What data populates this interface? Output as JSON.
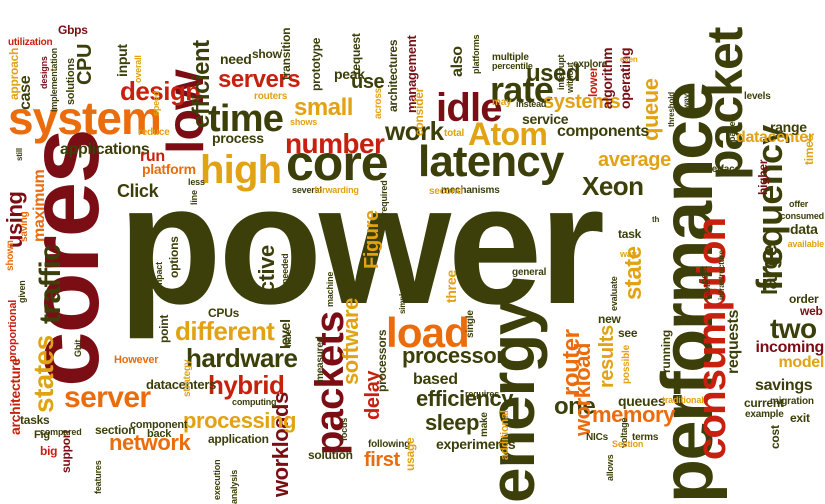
{
  "palette": {
    "olive": "#3d3f0a",
    "dark_red": "#7a0e14",
    "red": "#c8200e",
    "orange": "#ea6c0c",
    "gold": "#e1a213",
    "light_olive": "#8d8a1c"
  },
  "words": [
    {
      "text": "power",
      "color": "olive"
    },
    {
      "text": "cores",
      "color": "dark_red"
    },
    {
      "text": "performance",
      "color": "olive"
    },
    {
      "text": "energy",
      "color": "olive"
    },
    {
      "text": "consumption",
      "color": "red"
    },
    {
      "text": "packet",
      "color": "olive"
    },
    {
      "text": "system",
      "color": "orange"
    },
    {
      "text": "low",
      "color": "dark_red"
    },
    {
      "text": "core",
      "color": "olive"
    },
    {
      "text": "latency",
      "color": "olive"
    },
    {
      "text": "load",
      "color": "orange"
    },
    {
      "text": "frequency",
      "color": "olive"
    },
    {
      "text": "high",
      "color": "gold"
    },
    {
      "text": "time",
      "color": "olive"
    },
    {
      "text": "packets",
      "color": "dark_red"
    },
    {
      "text": "idle",
      "color": "dark_red"
    },
    {
      "text": "rate",
      "color": "olive"
    },
    {
      "text": "Atom",
      "color": "gold"
    },
    {
      "text": "traffic",
      "color": "olive"
    },
    {
      "text": "states",
      "color": "gold"
    },
    {
      "text": "server",
      "color": "orange"
    },
    {
      "text": "number",
      "color": "red"
    },
    {
      "text": "hardware",
      "color": "olive"
    },
    {
      "text": "hybrid",
      "color": "red"
    },
    {
      "text": "design",
      "color": "red"
    },
    {
      "text": "servers",
      "color": "red"
    },
    {
      "text": "state",
      "color": "gold"
    },
    {
      "text": "two",
      "color": "olive"
    },
    {
      "text": "different",
      "color": "gold"
    },
    {
      "text": "work",
      "color": "olive"
    },
    {
      "text": "small",
      "color": "gold"
    },
    {
      "text": "Xeon",
      "color": "olive"
    },
    {
      "text": "processor",
      "color": "olive"
    },
    {
      "text": "network",
      "color": "orange"
    },
    {
      "text": "workloads",
      "color": "dark_red"
    },
    {
      "text": "software",
      "color": "gold"
    },
    {
      "text": "router",
      "color": "orange"
    },
    {
      "text": "one",
      "color": "olive"
    },
    {
      "text": "workload",
      "color": "orange"
    },
    {
      "text": "efficiency",
      "color": "olive"
    },
    {
      "text": "processing",
      "color": "gold"
    },
    {
      "text": "active",
      "color": "olive"
    },
    {
      "text": "efficient",
      "color": "olive"
    },
    {
      "text": "used",
      "color": "olive"
    },
    {
      "text": "sleep",
      "color": "olive"
    },
    {
      "text": "memory",
      "color": "orange"
    },
    {
      "text": "average",
      "color": "gold"
    },
    {
      "text": "using",
      "color": "dark_red"
    },
    {
      "text": "CPU",
      "color": "olive"
    },
    {
      "text": "queue",
      "color": "gold"
    },
    {
      "text": "large",
      "color": "olive"
    },
    {
      "text": "Figure",
      "color": "gold"
    },
    {
      "text": "results",
      "color": "gold"
    },
    {
      "text": "delay",
      "color": "red"
    },
    {
      "text": "systems",
      "color": "gold"
    },
    {
      "text": "components",
      "color": "olive"
    },
    {
      "text": "first",
      "color": "orange"
    },
    {
      "text": "applications",
      "color": "olive"
    },
    {
      "text": "datacenter",
      "color": "gold"
    },
    {
      "text": "requests",
      "color": "olive"
    },
    {
      "text": "incoming",
      "color": "dark_red"
    },
    {
      "text": "savings",
      "color": "olive"
    },
    {
      "text": "model",
      "color": "gold"
    },
    {
      "text": "maximum",
      "color": "orange"
    },
    {
      "text": "service",
      "color": "olive"
    },
    {
      "text": "based",
      "color": "olive"
    },
    {
      "text": "queues",
      "color": "olive"
    },
    {
      "text": "Click",
      "color": "olive"
    },
    {
      "text": "run",
      "color": "red"
    },
    {
      "text": "input",
      "color": "olive"
    },
    {
      "text": "process",
      "color": "olive"
    },
    {
      "text": "management",
      "color": "dark_red"
    },
    {
      "text": "architectures",
      "color": "olive"
    },
    {
      "text": "algorithm",
      "color": "dark_red"
    },
    {
      "text": "operating",
      "color": "dark_red"
    },
    {
      "text": "range",
      "color": "olive"
    },
    {
      "text": "need",
      "color": "olive"
    },
    {
      "text": "peak",
      "color": "olive"
    },
    {
      "text": "level",
      "color": "olive"
    },
    {
      "text": "architecture",
      "color": "red"
    },
    {
      "text": "also",
      "color": "olive"
    },
    {
      "text": "use",
      "color": "olive"
    },
    {
      "text": "case",
      "color": "olive"
    },
    {
      "text": "platform",
      "color": "orange"
    },
    {
      "text": "application",
      "color": "olive"
    },
    {
      "text": "section",
      "color": "olive"
    },
    {
      "text": "show",
      "color": "olive"
    },
    {
      "text": "three",
      "color": "gold"
    },
    {
      "text": "task",
      "color": "olive"
    },
    {
      "text": "data",
      "color": "olive"
    },
    {
      "text": "CPUs",
      "color": "olive"
    },
    {
      "text": "point",
      "color": "olive"
    },
    {
      "text": "experiments",
      "color": "olive"
    },
    {
      "text": "transition",
      "color": "olive"
    },
    {
      "text": "prototype",
      "color": "olive"
    },
    {
      "text": "request",
      "color": "olive"
    },
    {
      "text": "options",
      "color": "olive"
    },
    {
      "text": "new",
      "color": "olive"
    },
    {
      "text": "see",
      "color": "olive"
    },
    {
      "text": "current",
      "color": "olive"
    },
    {
      "text": "cost",
      "color": "olive"
    },
    {
      "text": "order",
      "color": "olive"
    },
    {
      "text": "higher",
      "color": "dark_red"
    },
    {
      "text": "times",
      "color": "gold"
    },
    {
      "text": "consider",
      "color": "gold"
    },
    {
      "text": "lower",
      "color": "red"
    },
    {
      "text": "approach",
      "color": "gold"
    },
    {
      "text": "Gbps",
      "color": "dark_red"
    },
    {
      "text": "utilization",
      "color": "red"
    },
    {
      "text": "solutions",
      "color": "olive"
    },
    {
      "text": "implementation",
      "color": "olive"
    },
    {
      "text": "designs",
      "color": "dark_red"
    },
    {
      "text": "solution",
      "color": "olive"
    },
    {
      "text": "following",
      "color": "olive"
    },
    {
      "text": "usage",
      "color": "gold"
    },
    {
      "text": "tasks",
      "color": "olive"
    },
    {
      "text": "support",
      "color": "dark_red"
    },
    {
      "text": "big",
      "color": "red"
    },
    {
      "text": "Fig",
      "color": "olive"
    },
    {
      "text": "However",
      "color": "orange"
    },
    {
      "text": "component",
      "color": "olive"
    },
    {
      "text": "datacenters",
      "color": "olive"
    },
    {
      "text": "computing",
      "color": "olive"
    },
    {
      "text": "back",
      "color": "olive"
    },
    {
      "text": "proportional",
      "color": "red"
    },
    {
      "text": "shown",
      "color": "orange"
    },
    {
      "text": "saving",
      "color": "orange"
    },
    {
      "text": "total",
      "color": "gold"
    },
    {
      "text": "may",
      "color": "gold"
    },
    {
      "text": "reduce",
      "color": "gold"
    },
    {
      "text": "strategy",
      "color": "gold"
    },
    {
      "text": "measured",
      "color": "olive"
    },
    {
      "text": "processors",
      "color": "olive"
    },
    {
      "text": "routers",
      "color": "gold"
    },
    {
      "text": "multiple",
      "color": "olive"
    },
    {
      "text": "explore",
      "color": "olive"
    },
    {
      "text": "single",
      "color": "olive"
    },
    {
      "text": "general",
      "color": "olive"
    },
    {
      "text": "running",
      "color": "olive"
    },
    {
      "text": "terms",
      "color": "olive"
    },
    {
      "text": "interface",
      "color": "olive"
    },
    {
      "text": "levels",
      "color": "olive"
    },
    {
      "text": "exit",
      "color": "olive"
    },
    {
      "text": "migration",
      "color": "olive"
    },
    {
      "text": "example",
      "color": "olive"
    },
    {
      "text": "mechanisms",
      "color": "olive"
    },
    {
      "text": "second",
      "color": "gold"
    },
    {
      "text": "speed",
      "color": "gold"
    },
    {
      "text": "overall",
      "color": "gold"
    },
    {
      "text": "across",
      "color": "gold"
    },
    {
      "text": "web",
      "color": "dark_red"
    },
    {
      "text": "focus",
      "color": "olive"
    },
    {
      "text": "make",
      "color": "olive"
    },
    {
      "text": "additional",
      "color": "gold"
    },
    {
      "text": "possible",
      "color": "gold"
    },
    {
      "text": "NICs",
      "color": "olive"
    },
    {
      "text": "without",
      "color": "olive"
    },
    {
      "text": "interrupt",
      "color": "olive"
    },
    {
      "text": "shows",
      "color": "gold"
    },
    {
      "text": "paper",
      "color": "olive"
    },
    {
      "text": "offer",
      "color": "olive"
    },
    {
      "text": "consumed",
      "color": "olive"
    },
    {
      "text": "available",
      "color": "gold"
    },
    {
      "text": "table",
      "color": "olive"
    },
    {
      "text": "best",
      "color": "olive"
    },
    {
      "text": "evaluate",
      "color": "olive"
    },
    {
      "text": "way",
      "color": "gold"
    },
    {
      "text": "requires",
      "color": "olive"
    },
    {
      "text": "voltage",
      "color": "olive"
    },
    {
      "text": "several",
      "color": "olive"
    },
    {
      "text": "required",
      "color": "olive"
    },
    {
      "text": "features",
      "color": "olive"
    },
    {
      "text": "execution",
      "color": "olive"
    },
    {
      "text": "analysis",
      "color": "olive"
    },
    {
      "text": "Gbit",
      "color": "olive"
    },
    {
      "text": "little",
      "color": "olive"
    },
    {
      "text": "needed",
      "color": "olive"
    },
    {
      "text": "impact",
      "color": "olive"
    },
    {
      "text": "machine",
      "color": "olive"
    },
    {
      "text": "compared",
      "color": "olive"
    },
    {
      "text": "given",
      "color": "olive"
    },
    {
      "text": "platforms",
      "color": "olive"
    },
    {
      "text": "percentile",
      "color": "olive"
    },
    {
      "text": "instead",
      "color": "olive"
    },
    {
      "text": "always",
      "color": "olive"
    },
    {
      "text": "threshold",
      "color": "olive"
    },
    {
      "text": "infrastructure",
      "color": "olive"
    },
    {
      "text": "simple",
      "color": "olive"
    },
    {
      "text": "allows",
      "color": "olive"
    },
    {
      "text": "traditional",
      "color": "gold"
    },
    {
      "text": "forwarding",
      "color": "gold"
    },
    {
      "text": "less",
      "color": "olive"
    },
    {
      "text": "line",
      "color": "olive"
    },
    {
      "text": "still",
      "color": "olive"
    },
    {
      "text": "even",
      "color": "gold"
    },
    {
      "text": "th",
      "color": "olive"
    },
    {
      "text": "Section",
      "color": "gold"
    }
  ]
}
